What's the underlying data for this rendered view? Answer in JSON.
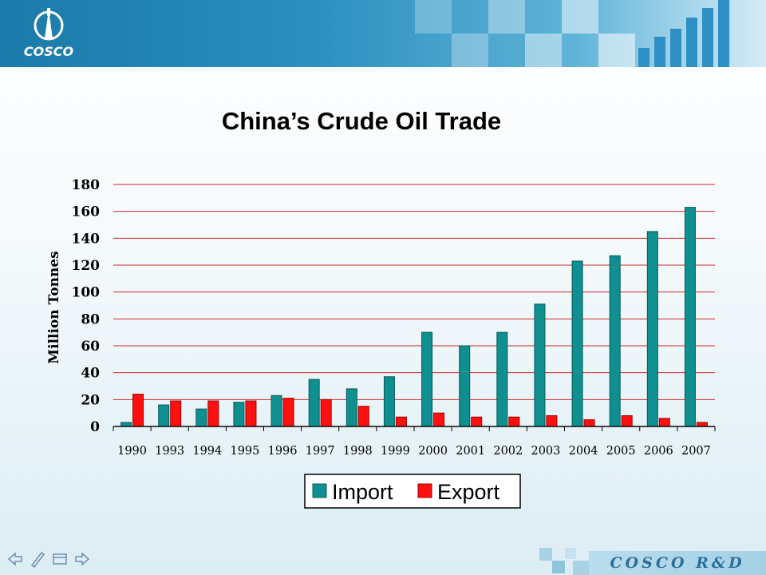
{
  "header": {
    "logo_text": "COSCO",
    "icon": "cosco-emblem-icon"
  },
  "slide": {
    "title": "China’s Crude Oil Trade"
  },
  "chart_data": {
    "type": "bar",
    "title": "China’s Crude Oil Trade",
    "ylabel": "Million Tonnes",
    "xlabel": "",
    "ylim": [
      0,
      180
    ],
    "yticks": [
      0,
      20,
      40,
      60,
      80,
      100,
      120,
      140,
      160,
      180
    ],
    "grid": true,
    "legend_placement": "bottom-center",
    "categories": [
      "1990",
      "1993",
      "1994",
      "1995",
      "1996",
      "1997",
      "1998",
      "1999",
      "2000",
      "2001",
      "2002",
      "2003",
      "2004",
      "2005",
      "2006",
      "2007"
    ],
    "series": [
      {
        "name": "Import",
        "color": "#0f8f8f",
        "values": [
          3,
          16,
          13,
          18,
          23,
          35,
          28,
          37,
          70,
          60,
          70,
          91,
          123,
          127,
          145,
          163
        ]
      },
      {
        "name": "Export",
        "color": "#ff1010",
        "values": [
          24,
          19,
          19,
          19,
          21,
          20,
          15,
          7,
          10,
          7,
          7,
          8,
          5,
          8,
          6,
          3
        ]
      }
    ],
    "grid_color": "#cc2a2a"
  },
  "footer": {
    "brand": "COSCO R&D",
    "nav": [
      "back-arrow-icon",
      "pen-icon",
      "menu-icon",
      "forward-arrow-icon"
    ]
  }
}
